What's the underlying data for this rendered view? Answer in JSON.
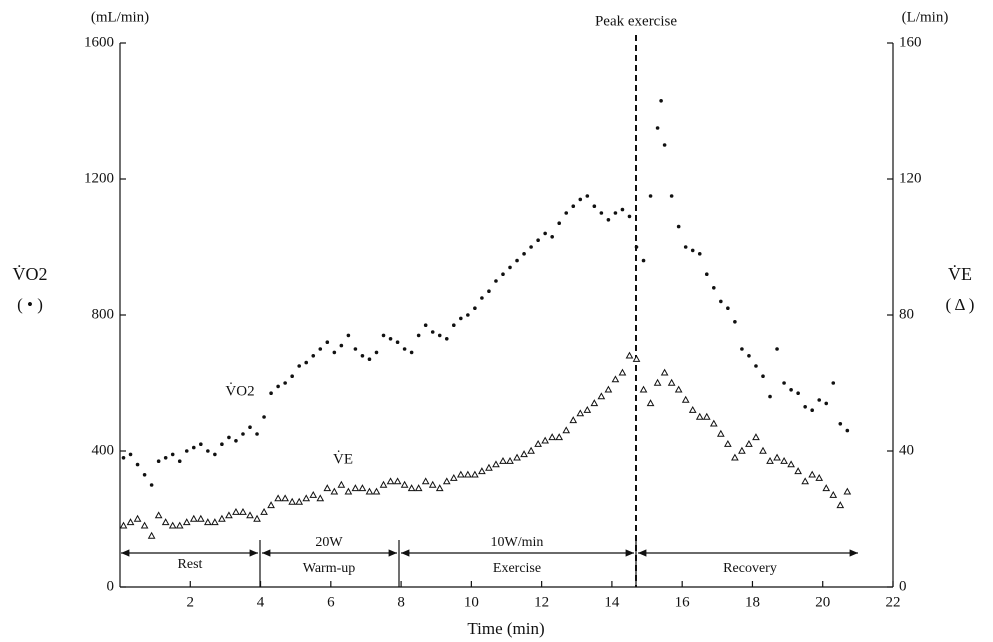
{
  "chart_data": {
    "type": "scatter",
    "xlabel": "Time (min)",
    "ylabel": "V̇O2",
    "ylabel_marker": "( • )",
    "yunit": "(mL/min)",
    "y2label": "V̇E",
    "y2label_marker": "( Δ )",
    "y2unit": "(L/min)",
    "xlim": [
      0,
      22
    ],
    "xticks": [
      2,
      4,
      6,
      8,
      10,
      12,
      14,
      16,
      18,
      20,
      22
    ],
    "ylim": [
      0,
      1600
    ],
    "yticks": [
      0,
      400,
      800,
      1200,
      1600
    ],
    "y2lim": [
      0,
      160
    ],
    "y2ticks": [
      0,
      40,
      80,
      120,
      160
    ],
    "annotations": {
      "peak": "Peak exercise",
      "vo2": "V̇O2",
      "ve": "V̇E"
    },
    "phases": {
      "rest": "Rest",
      "warmup_load": "20W",
      "warmup": "Warm-up",
      "exercise_load": "10W/min",
      "exercise": "Exercise",
      "recovery": "Recovery"
    },
    "series": [
      {
        "name": "V̇O2",
        "marker": "dot",
        "color": "#111111",
        "x": [
          0.1,
          0.3,
          0.5,
          0.7,
          0.9,
          1.1,
          1.3,
          1.5,
          1.7,
          1.9,
          2.1,
          2.3,
          2.5,
          2.7,
          2.9,
          3.1,
          3.3,
          3.5,
          3.7,
          3.9,
          4.1,
          4.3,
          4.5,
          4.7,
          4.9,
          5.1,
          5.3,
          5.5,
          5.7,
          5.9,
          6.1,
          6.3,
          6.5,
          6.7,
          6.9,
          7.1,
          7.3,
          7.5,
          7.7,
          7.9,
          8.1,
          8.3,
          8.5,
          8.7,
          8.9,
          9.1,
          9.3,
          9.5,
          9.7,
          9.9,
          10.1,
          10.3,
          10.5,
          10.7,
          10.9,
          11.1,
          11.3,
          11.5,
          11.7,
          11.9,
          12.1,
          12.3,
          12.5,
          12.7,
          12.9,
          13.1,
          13.3,
          13.5,
          13.7,
          13.9,
          14.1,
          14.3,
          14.5,
          14.7,
          14.9,
          15.1,
          15.3,
          15.4,
          15.5,
          15.7,
          15.9,
          16.1,
          16.3,
          16.5,
          16.7,
          16.9,
          17.1,
          17.3,
          17.5,
          17.7,
          17.9,
          18.1,
          18.3,
          18.5,
          18.7,
          18.9,
          19.1,
          19.3,
          19.5,
          19.7,
          19.9,
          20.1,
          20.3,
          20.5,
          20.7
        ],
        "values": [
          380,
          390,
          360,
          330,
          300,
          370,
          380,
          390,
          370,
          400,
          410,
          420,
          400,
          390,
          420,
          440,
          430,
          450,
          470,
          450,
          500,
          570,
          590,
          600,
          620,
          650,
          660,
          680,
          700,
          720,
          690,
          710,
          740,
          700,
          680,
          670,
          690,
          740,
          730,
          720,
          700,
          690,
          740,
          770,
          750,
          740,
          730,
          770,
          790,
          800,
          820,
          850,
          870,
          900,
          920,
          940,
          960,
          980,
          1000,
          1020,
          1040,
          1030,
          1070,
          1100,
          1120,
          1140,
          1150,
          1120,
          1100,
          1080,
          1100,
          1110,
          1090,
          1000,
          960,
          1150,
          1350,
          1430,
          1300,
          1150,
          1060,
          1000,
          990,
          980,
          920,
          880,
          840,
          820,
          780,
          700,
          680,
          650,
          620,
          560,
          700,
          600,
          580,
          570,
          530,
          520,
          550,
          540,
          600,
          480,
          460
        ]
      },
      {
        "name": "V̇E",
        "marker": "triangle",
        "color": "#111111",
        "axis": "y2",
        "x": [
          0.1,
          0.3,
          0.5,
          0.7,
          0.9,
          1.1,
          1.3,
          1.5,
          1.7,
          1.9,
          2.1,
          2.3,
          2.5,
          2.7,
          2.9,
          3.1,
          3.3,
          3.5,
          3.7,
          3.9,
          4.1,
          4.3,
          4.5,
          4.7,
          4.9,
          5.1,
          5.3,
          5.5,
          5.7,
          5.9,
          6.1,
          6.3,
          6.5,
          6.7,
          6.9,
          7.1,
          7.3,
          7.5,
          7.7,
          7.9,
          8.1,
          8.3,
          8.5,
          8.7,
          8.9,
          9.1,
          9.3,
          9.5,
          9.7,
          9.9,
          10.1,
          10.3,
          10.5,
          10.7,
          10.9,
          11.1,
          11.3,
          11.5,
          11.7,
          11.9,
          12.1,
          12.3,
          12.5,
          12.7,
          12.9,
          13.1,
          13.3,
          13.5,
          13.7,
          13.9,
          14.1,
          14.3,
          14.5,
          14.7,
          14.9,
          15.1,
          15.3,
          15.5,
          15.7,
          15.9,
          16.1,
          16.3,
          16.5,
          16.7,
          16.9,
          17.1,
          17.3,
          17.5,
          17.7,
          17.9,
          18.1,
          18.3,
          18.5,
          18.7,
          18.9,
          19.1,
          19.3,
          19.5,
          19.7,
          19.9,
          20.1,
          20.3,
          20.5,
          20.7
        ],
        "values": [
          18,
          19,
          20,
          18,
          15,
          21,
          19,
          18,
          18,
          19,
          20,
          20,
          19,
          19,
          20,
          21,
          22,
          22,
          21,
          20,
          22,
          24,
          26,
          26,
          25,
          25,
          26,
          27,
          26,
          29,
          28,
          30,
          28,
          29,
          29,
          28,
          28,
          30,
          31,
          31,
          30,
          29,
          29,
          31,
          30,
          29,
          31,
          32,
          33,
          33,
          33,
          34,
          35,
          36,
          37,
          37,
          38,
          39,
          40,
          42,
          43,
          44,
          44,
          46,
          49,
          51,
          52,
          54,
          56,
          58,
          61,
          63,
          68,
          67,
          58,
          54,
          60,
          63,
          60,
          58,
          55,
          52,
          50,
          50,
          48,
          45,
          42,
          38,
          40,
          42,
          44,
          40,
          37,
          38,
          37,
          36,
          34,
          31,
          33,
          32,
          29,
          27,
          24,
          28
        ]
      }
    ]
  }
}
